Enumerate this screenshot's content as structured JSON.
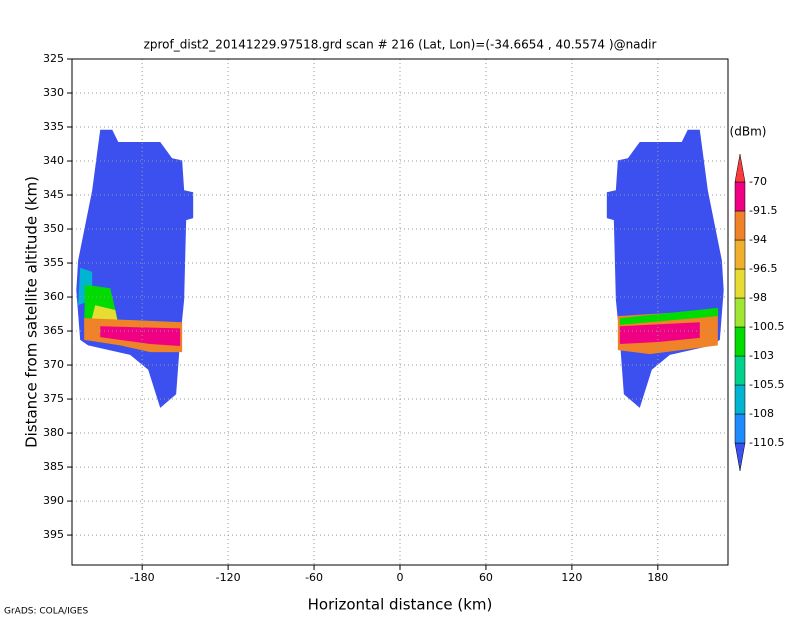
{
  "chart_data": {
    "type": "shaded",
    "title": "zprof_dist2_20141229.97518.grd  scan # 216  (Lat, Lon)=(-34.6654 , 40.5574 )@nadir",
    "x_label": "Horizontal distance (km)",
    "y_label": "Distance from satellite altitude (km)",
    "credit": "GrADS: COLA/IGES",
    "xlim": [
      -229,
      229
    ],
    "xticks": [
      -180,
      -120,
      -60,
      0,
      60,
      120,
      180
    ],
    "ylim": [
      325,
      399.4
    ],
    "yticks": [
      325,
      330,
      335,
      340,
      345,
      350,
      355,
      360,
      365,
      370,
      375,
      380,
      385,
      390,
      395
    ],
    "y_inverted": true,
    "grid": true,
    "colorbar": {
      "unit": "(dBm)",
      "levels": [
        -110.5,
        -108,
        -105.5,
        -103,
        -100.5,
        -98,
        -96.5,
        -94,
        -91.5,
        -70
      ],
      "colors": [
        "#3c50f0",
        "#1e8cff",
        "#00b4d2",
        "#00d28c",
        "#00dc00",
        "#a0e632",
        "#e6dc32",
        "#f0af2d",
        "#f08228",
        "#f00082",
        "#fa3c3c"
      ]
    },
    "regions": [
      {
        "value": -112,
        "points": [
          [
            -209.3,
            335.4
          ],
          [
            -200.9,
            335.4
          ],
          [
            -196.7,
            337.2
          ],
          [
            -167.4,
            337.2
          ],
          [
            -159.1,
            339.6
          ],
          [
            -152.1,
            339.9
          ],
          [
            -150.7,
            344.3
          ],
          [
            -144.4,
            344.6
          ],
          [
            -144.4,
            348.4
          ],
          [
            -149.3,
            348.7
          ],
          [
            -150.7,
            360.4
          ],
          [
            -153.5,
            366.3
          ],
          [
            -156.3,
            374.3
          ],
          [
            -167.4,
            376.3
          ],
          [
            -175.8,
            370.7
          ],
          [
            -188.4,
            368.5
          ],
          [
            -217.7,
            367.1
          ],
          [
            -223.3,
            366.3
          ],
          [
            -226,
            359
          ],
          [
            -224.7,
            354.6
          ],
          [
            -214.9,
            344.3
          ]
        ]
      },
      {
        "value": -112,
        "points": [
          [
            209.3,
            335.4
          ],
          [
            200.9,
            335.4
          ],
          [
            196.7,
            337.2
          ],
          [
            167.4,
            337.2
          ],
          [
            159.1,
            339.6
          ],
          [
            152.1,
            339.9
          ],
          [
            150.7,
            344.3
          ],
          [
            144.4,
            344.6
          ],
          [
            144.4,
            348.4
          ],
          [
            149.3,
            348.7
          ],
          [
            150.7,
            360.4
          ],
          [
            153.5,
            366.3
          ],
          [
            156.3,
            374.3
          ],
          [
            167.4,
            376.3
          ],
          [
            175.8,
            370.7
          ],
          [
            188.4,
            368.5
          ],
          [
            217.7,
            367.1
          ],
          [
            223.3,
            366.3
          ],
          [
            226,
            359
          ],
          [
            224.7,
            354.6
          ],
          [
            214.9,
            344.3
          ]
        ]
      },
      {
        "value": -107,
        "points": [
          [
            -223.3,
            355.7
          ],
          [
            -214.9,
            356.3
          ],
          [
            -214.9,
            360.4
          ],
          [
            -224.7,
            361.2
          ]
        ]
      },
      {
        "value": -101,
        "points": [
          [
            -219.8,
            358.2
          ],
          [
            -202.3,
            358.7
          ],
          [
            -196.7,
            363.7
          ],
          [
            -220.5,
            364
          ]
        ]
      },
      {
        "value": -97,
        "points": [
          [
            -212.8,
            361.2
          ],
          [
            -198.8,
            361.9
          ],
          [
            -196.7,
            364.1
          ],
          [
            -216.3,
            364.1
          ]
        ]
      },
      {
        "value": -93,
        "points": [
          [
            -220.5,
            363.1
          ],
          [
            -152.1,
            363.7
          ],
          [
            -152.1,
            368.1
          ],
          [
            -174.4,
            368.1
          ],
          [
            -195.3,
            367.1
          ],
          [
            -220.5,
            366.3
          ]
        ]
      },
      {
        "value": -80,
        "points": [
          [
            -209.3,
            364.3
          ],
          [
            -153.5,
            364.6
          ],
          [
            -153.5,
            367.2
          ],
          [
            -174.4,
            366.9
          ],
          [
            -209.3,
            365.9
          ]
        ]
      },
      {
        "value": -93,
        "points": [
          [
            152.1,
            362.8
          ],
          [
            221.9,
            361.9
          ],
          [
            221.9,
            367.1
          ],
          [
            174.4,
            368.4
          ],
          [
            152.1,
            367.8
          ]
        ]
      },
      {
        "value": -101,
        "points": [
          [
            153.5,
            363.1
          ],
          [
            221.9,
            361.6
          ],
          [
            221.9,
            362.8
          ],
          [
            153.5,
            364.1
          ]
        ]
      },
      {
        "value": -80,
        "points": [
          [
            153.5,
            364.3
          ],
          [
            209.3,
            363.7
          ],
          [
            209.3,
            366
          ],
          [
            181.4,
            366.6
          ],
          [
            153.5,
            366.9
          ]
        ]
      }
    ]
  }
}
